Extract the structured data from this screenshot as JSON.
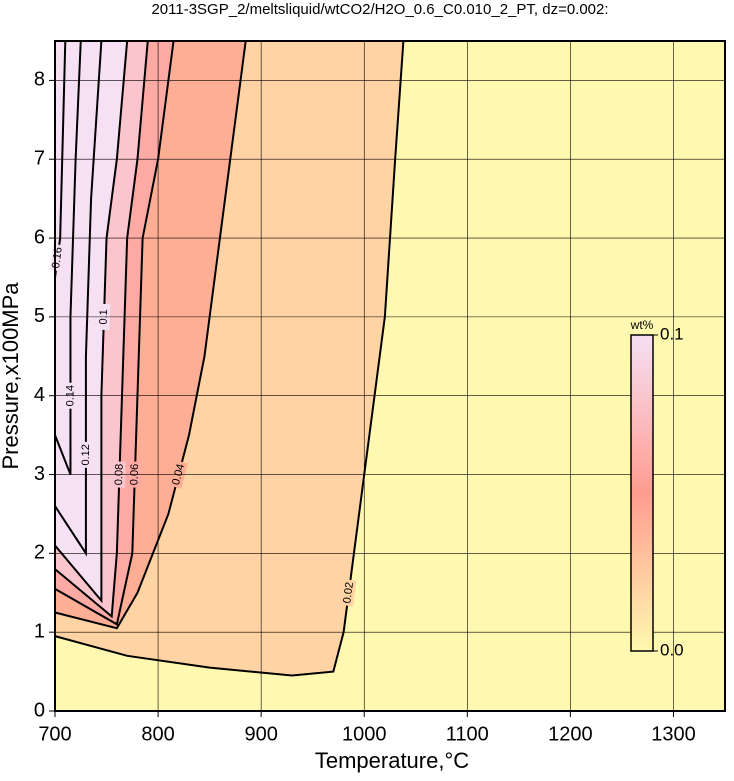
{
  "chart_data": {
    "type": "contour",
    "title": "2011-3SGP_2/meltsliquid/wtCO2/H2O_0.6_C0.010_2_PT, dz=0.002:",
    "x_label": "Temperature,°C",
    "y_label": "Pressure,x100MPa",
    "xlim": [
      700,
      1350
    ],
    "ylim": [
      0,
      8.5
    ],
    "xticks": [
      700,
      800,
      900,
      1000,
      1100,
      1200,
      1300
    ],
    "yticks": [
      0,
      1,
      2,
      3,
      4,
      5,
      6,
      7,
      8
    ],
    "grid": true,
    "colorbar": {
      "label": "wt%",
      "lim": [
        0,
        0.1
      ],
      "ticks": [
        {
          "value": 0,
          "label": "0.0"
        },
        0.1
      ],
      "colormap": [
        {
          "value": 0,
          "color": "#fff8b0"
        },
        {
          "value": 0.05,
          "color": "#ff9c90"
        },
        {
          "value": 0.1,
          "color": "#f6e0f4"
        }
      ]
    },
    "contours": [
      {
        "level": 0.02,
        "x": [
          700,
          770,
          850,
          930,
          970,
          980,
          990,
          1000,
          1010,
          1020,
          1030,
          1038
        ],
        "y": [
          0.95,
          0.7,
          0.55,
          0.45,
          0.5,
          1,
          2,
          3,
          4,
          5,
          7,
          8.5
        ]
      },
      {
        "level": 0.04,
        "x": [
          700,
          760,
          780,
          810,
          830,
          845,
          860,
          875,
          885
        ],
        "y": [
          1.25,
          1.05,
          1.5,
          2.5,
          3.5,
          4.5,
          6,
          7.5,
          8.5
        ]
      },
      {
        "level": 0.06,
        "x": [
          700,
          760,
          775,
          780,
          785,
          800,
          815
        ],
        "y": [
          1.55,
          1.1,
          2,
          4,
          6,
          7,
          8.5
        ]
      },
      {
        "level": 0.08,
        "x": [
          700,
          755,
          760,
          765,
          770,
          780,
          790
        ],
        "y": [
          1.8,
          1.2,
          2,
          4,
          6,
          7,
          8.5
        ]
      },
      {
        "level": 0.1,
        "x": [
          700,
          745,
          745,
          750,
          760,
          770
        ],
        "y": [
          2.1,
          1.4,
          4,
          6,
          7,
          8.5
        ]
      },
      {
        "level": 0.12,
        "x": [
          700,
          730,
          730,
          735,
          745
        ],
        "y": [
          2.6,
          2,
          4.5,
          6.5,
          8.5
        ]
      },
      {
        "level": 0.14,
        "x": [
          700,
          715,
          715,
          720,
          725
        ],
        "y": [
          3.5,
          3,
          5,
          7,
          8.5
        ]
      },
      {
        "level": 0.16,
        "x": [
          700,
          705,
          710
        ],
        "y": [
          5.5,
          6,
          8.5
        ]
      }
    ]
  }
}
